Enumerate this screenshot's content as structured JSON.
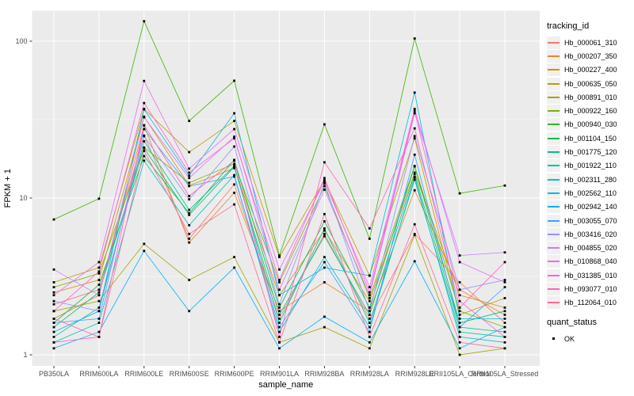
{
  "chart_data": {
    "type": "line",
    "title": "",
    "xlabel": "sample_name",
    "ylabel": "FPKM + 1",
    "y_scale": "log10",
    "ylim": [
      1,
      160
    ],
    "y_ticks": [
      1,
      10,
      100
    ],
    "y_tick_labels": [
      "1",
      "10",
      "100"
    ],
    "y_minor_ticks": [
      3.1623,
      31.623
    ],
    "grid": "on",
    "panel_color": "#EBEBEB",
    "grid_color": "#FFFFFF",
    "tick_label_color": "#4D4D4D",
    "point_marker": "black-square",
    "legend_position": "right",
    "categories": [
      "PB350LA",
      "RRIM600LA",
      "RRIM600LE",
      "RRIM600SE",
      "RRIM600PE",
      "RRIM901LA",
      "RRIM928BA",
      "RRIM928LA",
      "RRIM928LE",
      "RRII105LA_Control",
      "RRII105LA_Stressed"
    ],
    "legend": {
      "tracking_title": "tracking_id",
      "quant_title": "quant_status",
      "quant_items": [
        {
          "label": "OK"
        }
      ]
    },
    "series": [
      {
        "name": "Hb_000061_310",
        "color": "#F8766D",
        "values": [
          2.1,
          2.6,
          25,
          5.5,
          12.2,
          1.7,
          5.9,
          1.7,
          5.9,
          2.9,
          1.6
        ]
      },
      {
        "name": "Hb_000207_350",
        "color": "#EA8331",
        "values": [
          1.7,
          2.4,
          29,
          5.2,
          10.8,
          1.9,
          2.9,
          1.9,
          11.2,
          2.6,
          1.8
        ]
      },
      {
        "name": "Hb_000227_400",
        "color": "#D89000",
        "values": [
          2.5,
          3.0,
          33,
          12.0,
          15.5,
          2.4,
          6.2,
          2.2,
          14.5,
          2.4,
          2.0
        ]
      },
      {
        "name": "Hb_000635_050",
        "color": "#C09B00",
        "values": [
          2.9,
          3.6,
          37,
          19.6,
          31,
          4.2,
          13.0,
          3.2,
          24,
          1.8,
          2.3
        ]
      },
      {
        "name": "Hb_000891_010",
        "color": "#A3A500",
        "values": [
          1.9,
          2.2,
          5.1,
          3.0,
          4.2,
          1.2,
          1.5,
          1.1,
          5.8,
          1.0,
          1.1
        ]
      },
      {
        "name": "Hb_000922_160",
        "color": "#7CAE00",
        "values": [
          2.7,
          3.3,
          21,
          12.5,
          16.5,
          2.9,
          11.9,
          2.3,
          16.0,
          1.9,
          1.5
        ]
      },
      {
        "name": "Hb_000940_030",
        "color": "#39B600",
        "values": [
          7.3,
          9.9,
          134,
          31,
          56,
          4.3,
          29.5,
          5.5,
          104,
          10.7,
          12.0
        ]
      },
      {
        "name": "Hb_001104_150",
        "color": "#00BB4E",
        "values": [
          1.6,
          2.8,
          18.5,
          8.0,
          17.5,
          2.0,
          7.1,
          2.0,
          15.9,
          1.6,
          1.9
        ]
      },
      {
        "name": "Hb_001775_120",
        "color": "#00BF7D",
        "values": [
          1.5,
          2.5,
          20.8,
          7.8,
          15.8,
          1.8,
          5.7,
          1.8,
          14.2,
          1.5,
          1.4
        ]
      },
      {
        "name": "Hb_001922_110",
        "color": "#00C1A3",
        "values": [
          1.3,
          2.0,
          23,
          8.4,
          16.0,
          1.6,
          6.4,
          1.6,
          13.1,
          1.4,
          1.3
        ]
      },
      {
        "name": "Hb_002311_280",
        "color": "#00BFC4",
        "values": [
          1.2,
          1.6,
          17.3,
          6.7,
          14.0,
          1.4,
          4.2,
          1.5,
          13.6,
          1.3,
          1.2
        ]
      },
      {
        "name": "Hb_002562_110",
        "color": "#00BAE0",
        "values": [
          1.4,
          1.9,
          36.7,
          13.9,
          34.7,
          2.4,
          3.6,
          3.2,
          47,
          1.7,
          1.7
        ]
      },
      {
        "name": "Hb_002942_140",
        "color": "#00B0F6",
        "values": [
          1.1,
          1.4,
          4.6,
          1.9,
          3.6,
          1.1,
          1.75,
          1.2,
          3.95,
          1.1,
          1.5
        ]
      },
      {
        "name": "Hb_003055_070",
        "color": "#35A2FF",
        "values": [
          1.6,
          1.7,
          27.5,
          11.9,
          13.7,
          1.5,
          3.9,
          1.4,
          18.9,
          1.5,
          2.7
        ]
      },
      {
        "name": "Hb_003416_020",
        "color": "#9590FF",
        "values": [
          2.2,
          1.9,
          24.8,
          9.8,
          21.3,
          2.1,
          12.4,
          1.9,
          24.8,
          2.6,
          3.0
        ]
      },
      {
        "name": "Hb_004855_020",
        "color": "#C77CFF",
        "values": [
          3.5,
          2.4,
          32.7,
          13.4,
          24.6,
          2.6,
          11.3,
          2.4,
          34.7,
          4.3,
          4.5
        ]
      },
      {
        "name": "Hb_010868_040",
        "color": "#E76BF3",
        "values": [
          2.4,
          3.9,
          55.8,
          15.4,
          27.5,
          3.5,
          12.7,
          2.7,
          37,
          3.9,
          2.9
        ]
      },
      {
        "name": "Hb_031385_010",
        "color": "#FA62DB",
        "values": [
          1.9,
          3.4,
          40.3,
          14.5,
          24.0,
          3.0,
          13.4,
          2.5,
          36,
          2.2,
          1.3
        ]
      },
      {
        "name": "Hb_093077_010",
        "color": "#FF62BC",
        "values": [
          1.2,
          1.3,
          29.1,
          10.3,
          17.3,
          1.3,
          16.9,
          6.4,
          27.8,
          2.0,
          3.9
        ]
      },
      {
        "name": "Hb_112064_010",
        "color": "#FF6A98",
        "values": [
          1.7,
          1.3,
          20,
          5.9,
          9.1,
          1.2,
          7.9,
          1.3,
          6.8,
          1.2,
          1.1
        ]
      }
    ]
  }
}
